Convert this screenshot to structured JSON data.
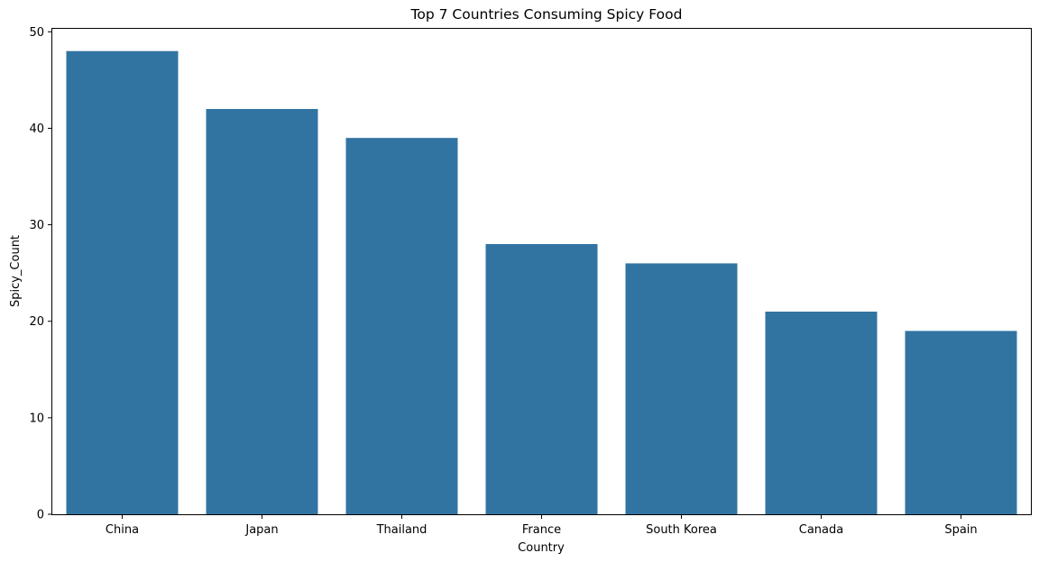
{
  "chart_data": {
    "type": "bar",
    "title": "Top 7 Countries Consuming Spicy Food",
    "xlabel": "Country",
    "ylabel": "Spicy_Count",
    "categories": [
      "China",
      "Japan",
      "Thailand",
      "France",
      "South Korea",
      "Canada",
      "Spain"
    ],
    "values": [
      48,
      42,
      39,
      28,
      26,
      21,
      19
    ],
    "ylim": [
      0,
      50.4
    ],
    "yticks": [
      0,
      10,
      20,
      30,
      40,
      50
    ],
    "bar_color": "#3274a1",
    "grid": false,
    "legend": "none"
  }
}
